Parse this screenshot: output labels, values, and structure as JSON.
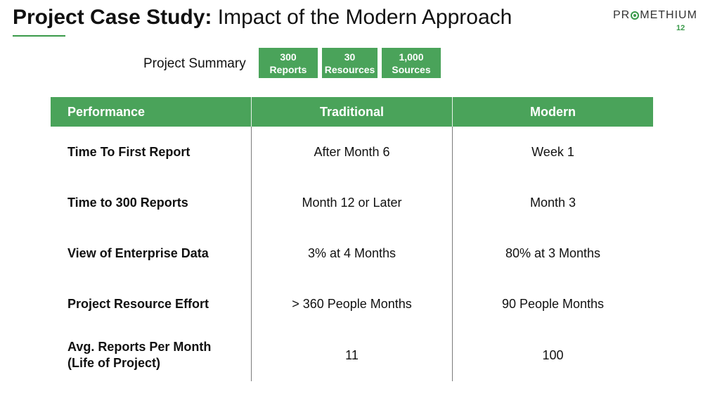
{
  "header": {
    "title_bold": "Project Case Study:",
    "title_rest": "Impact of the Modern Approach",
    "logo_left": "PR",
    "logo_right": "METHIUM",
    "page_number": "12"
  },
  "summary": {
    "label": "Project Summary",
    "boxes": [
      {
        "line1": "300",
        "line2": "Reports"
      },
      {
        "line1": "30",
        "line2": "Resources"
      },
      {
        "line1": "1,000",
        "line2": "Sources"
      }
    ]
  },
  "table": {
    "headers": [
      "Performance",
      "Traditional",
      "Modern"
    ],
    "rows": [
      {
        "metric": "Time To First Report",
        "traditional": "After Month 6",
        "modern": "Week 1"
      },
      {
        "metric": "Time to 300 Reports",
        "traditional": "Month 12 or Later",
        "modern": "Month 3"
      },
      {
        "metric": "View of Enterprise Data",
        "traditional": "3% at 4 Months",
        "modern": "80% at 3 Months"
      },
      {
        "metric": "Project Resource Effort",
        "traditional": "> 360 People Months",
        "modern": "90 People Months"
      },
      {
        "metric_line1": "Avg. Reports Per Month",
        "metric_line2": "(Life of Project)",
        "traditional": "11",
        "modern": "100"
      }
    ]
  },
  "colors": {
    "accent_green": "#4aa35a"
  }
}
